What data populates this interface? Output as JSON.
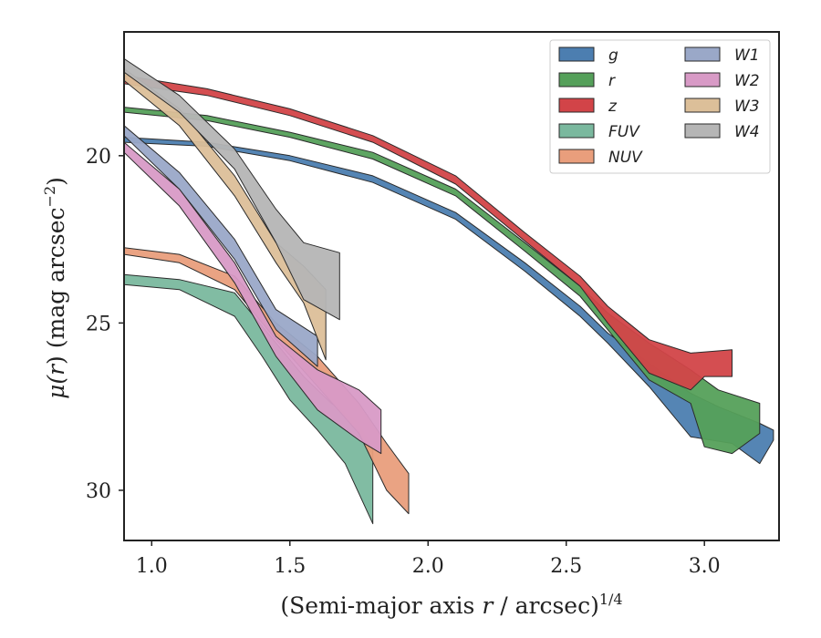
{
  "chart_data": {
    "type": "area",
    "title": "",
    "xlabel": "(Semi-major axis r / arcsec)",
    "xlabel_parts": {
      "pre": "(Semi-major axis ",
      "var": "r",
      "post": " / arcsec)",
      "sup": "1/4"
    },
    "ylabel": "μ(r) (mag arcsec⁻²)",
    "ylabel_parts": {
      "mu": "μ(",
      "var": "r",
      "mid": ") (mag arcsec",
      "sup": "−2",
      "post": ")"
    },
    "xlim": [
      0.9,
      3.27
    ],
    "ylim": [
      31.5,
      16.3
    ],
    "y_inverted": true,
    "xticks": [
      1.0,
      1.5,
      2.0,
      2.5,
      3.0
    ],
    "xtick_labels": [
      "1.0",
      "1.5",
      "2.0",
      "2.5",
      "3.0"
    ],
    "yticks": [
      20,
      25,
      30
    ],
    "ytick_labels": [
      "20",
      "25",
      "30"
    ],
    "grid": false,
    "legend_position": "top-right",
    "legend_columns": 2,
    "series": [
      {
        "name": "g",
        "color": "#4c7eb0",
        "upper": [
          [
            0.9,
            19.45
          ],
          [
            1.2,
            19.6
          ],
          [
            1.5,
            20.0
          ],
          [
            1.8,
            20.6
          ],
          [
            2.1,
            21.7
          ],
          [
            2.35,
            23.2
          ],
          [
            2.55,
            24.5
          ],
          [
            2.65,
            25.3
          ],
          [
            2.8,
            26.2
          ],
          [
            2.95,
            27.1
          ],
          [
            3.05,
            27.5
          ],
          [
            3.2,
            28.0
          ],
          [
            3.25,
            28.2
          ]
        ],
        "lower": [
          [
            3.25,
            28.5
          ],
          [
            3.2,
            29.2
          ],
          [
            3.1,
            28.6
          ],
          [
            2.95,
            28.4
          ],
          [
            2.8,
            26.9
          ],
          [
            2.65,
            25.6
          ],
          [
            2.55,
            24.8
          ],
          [
            2.35,
            23.45
          ],
          [
            2.1,
            21.9
          ],
          [
            1.8,
            20.8
          ],
          [
            1.5,
            20.15
          ],
          [
            1.2,
            19.72
          ],
          [
            0.9,
            19.6
          ]
        ]
      },
      {
        "name": "r",
        "color": "#55a05a",
        "upper": [
          [
            0.9,
            18.55
          ],
          [
            1.2,
            18.8
          ],
          [
            1.5,
            19.3
          ],
          [
            1.8,
            19.9
          ],
          [
            2.1,
            21.0
          ],
          [
            2.35,
            22.6
          ],
          [
            2.55,
            23.9
          ],
          [
            2.65,
            24.7
          ],
          [
            2.8,
            25.6
          ],
          [
            2.95,
            26.4
          ],
          [
            3.05,
            27.0
          ],
          [
            3.2,
            27.4
          ]
        ],
        "lower": [
          [
            3.2,
            28.3
          ],
          [
            3.1,
            28.9
          ],
          [
            3.0,
            28.7
          ],
          [
            2.95,
            27.4
          ],
          [
            2.8,
            26.7
          ],
          [
            2.65,
            25.2
          ],
          [
            2.55,
            24.2
          ],
          [
            2.35,
            22.85
          ],
          [
            2.1,
            21.2
          ],
          [
            1.8,
            20.1
          ],
          [
            1.5,
            19.45
          ],
          [
            1.2,
            18.95
          ],
          [
            0.9,
            18.7
          ]
        ]
      },
      {
        "name": "z",
        "color": "#d24448",
        "upper": [
          [
            0.9,
            17.6
          ],
          [
            1.2,
            18.0
          ],
          [
            1.5,
            18.6
          ],
          [
            1.8,
            19.4
          ],
          [
            2.1,
            20.6
          ],
          [
            2.35,
            22.3
          ],
          [
            2.55,
            23.6
          ],
          [
            2.65,
            24.5
          ],
          [
            2.8,
            25.5
          ],
          [
            2.95,
            25.9
          ],
          [
            3.1,
            25.8
          ]
        ],
        "lower": [
          [
            3.1,
            26.6
          ],
          [
            3.0,
            26.6
          ],
          [
            2.95,
            27.0
          ],
          [
            2.8,
            26.5
          ],
          [
            2.65,
            25.0
          ],
          [
            2.55,
            23.9
          ],
          [
            2.35,
            22.55
          ],
          [
            2.1,
            20.85
          ],
          [
            1.8,
            19.6
          ],
          [
            1.5,
            18.8
          ],
          [
            1.2,
            18.2
          ],
          [
            0.9,
            17.85
          ]
        ]
      },
      {
        "name": "FUV",
        "color": "#7ab89e",
        "upper": [
          [
            0.9,
            23.55
          ],
          [
            1.1,
            23.7
          ],
          [
            1.3,
            24.1
          ],
          [
            1.45,
            25.6
          ],
          [
            1.55,
            26.6
          ],
          [
            1.65,
            27.4
          ],
          [
            1.75,
            28.0
          ],
          [
            1.8,
            28.8
          ]
        ],
        "lower": [
          [
            1.8,
            31.0
          ],
          [
            1.7,
            29.2
          ],
          [
            1.6,
            28.2
          ],
          [
            1.5,
            27.3
          ],
          [
            1.4,
            26.0
          ],
          [
            1.3,
            24.8
          ],
          [
            1.1,
            24.0
          ],
          [
            0.9,
            23.85
          ]
        ]
      },
      {
        "name": "NUV",
        "color": "#e99e7c",
        "upper": [
          [
            0.9,
            22.75
          ],
          [
            1.1,
            22.95
          ],
          [
            1.3,
            23.6
          ],
          [
            1.45,
            25.0
          ],
          [
            1.6,
            26.0
          ],
          [
            1.75,
            27.4
          ],
          [
            1.85,
            28.6
          ],
          [
            1.93,
            29.5
          ]
        ],
        "lower": [
          [
            1.93,
            30.7
          ],
          [
            1.85,
            30.0
          ],
          [
            1.75,
            28.3
          ],
          [
            1.6,
            26.9
          ],
          [
            1.45,
            25.5
          ],
          [
            1.3,
            24.0
          ],
          [
            1.1,
            23.2
          ],
          [
            0.9,
            22.95
          ]
        ]
      },
      {
        "name": "W1",
        "color": "#9aa8c8",
        "upper": [
          [
            0.9,
            19.1
          ],
          [
            1.1,
            20.5
          ],
          [
            1.3,
            22.5
          ],
          [
            1.45,
            24.6
          ],
          [
            1.6,
            25.4
          ]
        ],
        "lower": [
          [
            1.6,
            26.3
          ],
          [
            1.45,
            25.2
          ],
          [
            1.3,
            23.1
          ],
          [
            1.1,
            21.0
          ],
          [
            0.9,
            19.4
          ]
        ]
      },
      {
        "name": "W2",
        "color": "#d89ac6",
        "upper": [
          [
            0.9,
            19.6
          ],
          [
            1.1,
            21.0
          ],
          [
            1.3,
            23.2
          ],
          [
            1.45,
            25.4
          ],
          [
            1.6,
            26.4
          ],
          [
            1.75,
            27.0
          ],
          [
            1.83,
            27.6
          ]
        ],
        "lower": [
          [
            1.83,
            28.9
          ],
          [
            1.75,
            28.5
          ],
          [
            1.6,
            27.6
          ],
          [
            1.45,
            26.0
          ],
          [
            1.3,
            23.8
          ],
          [
            1.1,
            21.5
          ],
          [
            0.9,
            19.9
          ]
        ]
      },
      {
        "name": "W3",
        "color": "#dcbf99",
        "upper": [
          [
            0.9,
            17.4
          ],
          [
            1.1,
            18.6
          ],
          [
            1.3,
            20.6
          ],
          [
            1.45,
            22.6
          ],
          [
            1.55,
            23.3
          ],
          [
            1.63,
            24.0
          ]
        ],
        "lower": [
          [
            1.63,
            26.1
          ],
          [
            1.55,
            24.4
          ],
          [
            1.45,
            23.2
          ],
          [
            1.3,
            21.2
          ],
          [
            1.1,
            19.1
          ],
          [
            0.9,
            17.75
          ]
        ]
      },
      {
        "name": "W4",
        "color": "#b5b5b5",
        "upper": [
          [
            0.9,
            17.1
          ],
          [
            1.1,
            18.2
          ],
          [
            1.3,
            19.8
          ],
          [
            1.45,
            21.6
          ],
          [
            1.55,
            22.6
          ],
          [
            1.68,
            22.9
          ]
        ],
        "lower": [
          [
            1.68,
            24.9
          ],
          [
            1.55,
            24.3
          ],
          [
            1.45,
            22.6
          ],
          [
            1.3,
            20.4
          ],
          [
            1.1,
            18.7
          ],
          [
            0.9,
            17.5
          ]
        ]
      }
    ]
  }
}
